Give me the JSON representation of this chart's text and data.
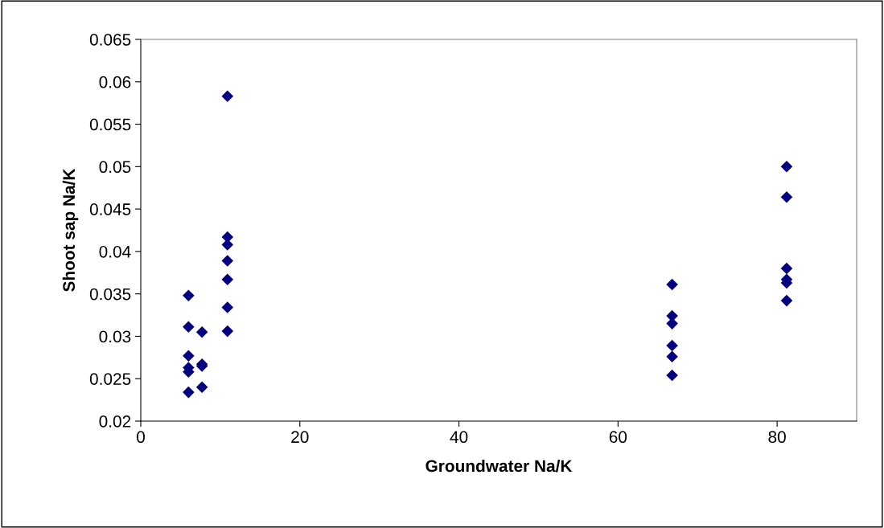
{
  "chart_data": {
    "type": "scatter",
    "xlabel": "Groundwater Na/K",
    "ylabel": "Shoot sap Na/K",
    "x": [
      6,
      6,
      6,
      6,
      6,
      6,
      7.7,
      7.7,
      7.7,
      7.7,
      10.9,
      10.9,
      10.9,
      10.9,
      10.9,
      10.9,
      10.9,
      66.8,
      66.8,
      66.8,
      66.8,
      66.8,
      66.8,
      81.2,
      81.2,
      81.2,
      81.2,
      81.2,
      81.2
    ],
    "values": [
      0.0348,
      0.0311,
      0.0277,
      0.0263,
      0.0258,
      0.0234,
      0.0305,
      0.0267,
      0.0265,
      0.024,
      0.0583,
      0.0417,
      0.0408,
      0.0389,
      0.0367,
      0.0334,
      0.0306,
      0.0361,
      0.0324,
      0.0315,
      0.0289,
      0.0276,
      0.0254,
      0.05,
      0.0464,
      0.038,
      0.0367,
      0.0363,
      0.0342
    ],
    "color": "#000080",
    "marker": "diamond",
    "grid": false,
    "legend": false,
    "xlim": [
      0,
      90
    ],
    "xticks": [
      0,
      20,
      40,
      60,
      80
    ],
    "ylim": [
      0.02,
      0.065
    ],
    "yticks": [
      {
        "value": 0.02,
        "label": "0.02"
      },
      {
        "value": 0.025,
        "label": "0.025"
      },
      {
        "value": 0.03,
        "label": "0.03"
      },
      {
        "value": 0.035,
        "label": "0.035"
      },
      {
        "value": 0.04,
        "label": "0.04"
      },
      {
        "value": 0.045,
        "label": "0.045"
      },
      {
        "value": 0.05,
        "label": "0.05"
      },
      {
        "value": 0.055,
        "label": "0.055"
      },
      {
        "value": 0.06,
        "label": "0.06"
      },
      {
        "value": 0.065,
        "label": "0.065"
      }
    ]
  }
}
